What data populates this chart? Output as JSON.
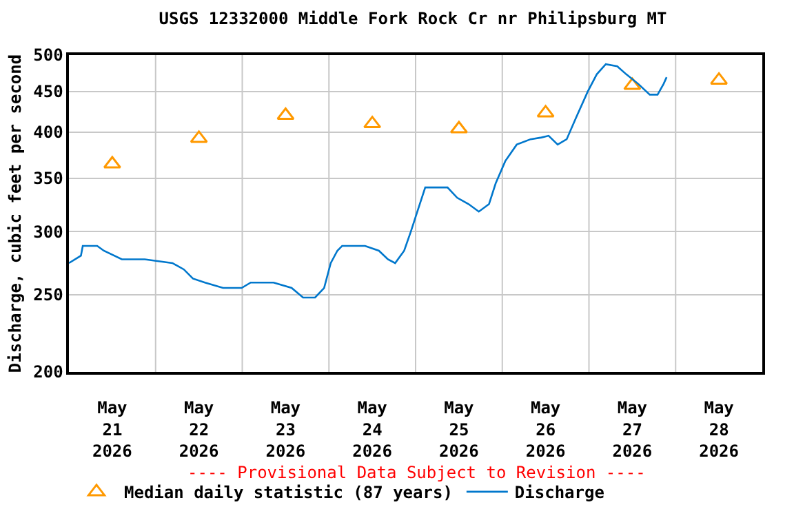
{
  "chart_data": {
    "type": "line",
    "title": "USGS 12332000 Middle Fork Rock Cr nr Philipsburg MT",
    "ylabel": "Discharge, cubic feet per second",
    "annotations": [
      "---- Provisional Data Subject to Revision ----"
    ],
    "log": "y",
    "grid": true,
    "legend": "bottom",
    "xlim": [
      "2026-05-21T00:00",
      "2026-05-29T00:00"
    ],
    "xticks": [
      {
        "value": "2026-05-21T12:00",
        "label": "May\n21\n2026"
      },
      {
        "value": "2026-05-22T00:00",
        "label": null
      },
      {
        "value": "2026-05-22T12:00",
        "label": "May\n22\n2026"
      },
      {
        "value": "2026-05-23T00:00",
        "label": null
      },
      {
        "value": "2026-05-23T12:00",
        "label": "May\n23\n2026"
      },
      {
        "value": "2026-05-24T00:00",
        "label": null
      },
      {
        "value": "2026-05-24T12:00",
        "label": "May\n24\n2026"
      },
      {
        "value": "2026-05-25T00:00",
        "label": null
      },
      {
        "value": "2026-05-25T12:00",
        "label": "May\n25\n2026"
      },
      {
        "value": "2026-05-26T00:00",
        "label": null
      },
      {
        "value": "2026-05-26T12:00",
        "label": "May\n26\n2026"
      },
      {
        "value": "2026-05-27T00:00",
        "label": null
      },
      {
        "value": "2026-05-27T12:00",
        "label": "May\n27\n2026"
      },
      {
        "value": "2026-05-28T00:00",
        "label": null
      },
      {
        "value": "2026-05-28T12:00",
        "label": "May\n28\n2026"
      }
    ],
    "ylim": [
      200,
      500
    ],
    "yticks": [
      200,
      250,
      300,
      350,
      400,
      450,
      500
    ],
    "series": [
      {
        "name": "Median daily statistic (87 years)",
        "type": "scatter",
        "marker": "triangle",
        "color": "#ff9900",
        "x": [
          "2026-05-21T12:00",
          "2026-05-22T12:00",
          "2026-05-23T12:00",
          "2026-05-24T12:00",
          "2026-05-25T12:00",
          "2026-05-26T12:00",
          "2026-05-27T12:00",
          "2026-05-28T12:00"
        ],
        "values": [
          365,
          393,
          420,
          410,
          404,
          423,
          458,
          465
        ]
      },
      {
        "name": "Discharge",
        "marker": "none",
        "line_style": "solid",
        "color": "#0077cc",
        "x": [
          "2026-05-21T00:00",
          "2026-05-21T03:20",
          "2026-05-21T03:50",
          "2026-05-21T07:50",
          "2026-05-21T09:40",
          "2026-05-21T14:40",
          "2026-05-21T21:00",
          "2026-05-22T04:40",
          "2026-05-22T07:50",
          "2026-05-22T10:20",
          "2026-05-22T13:40",
          "2026-05-22T18:40",
          "2026-05-22T23:50",
          "2026-05-23T02:20",
          "2026-05-23T08:40",
          "2026-05-23T13:40",
          "2026-05-23T16:50",
          "2026-05-23T20:10",
          "2026-05-23T22:40",
          "2026-05-24T00:30",
          "2026-05-24T02:20",
          "2026-05-24T03:40",
          "2026-05-24T10:00",
          "2026-05-24T13:50",
          "2026-05-24T16:20",
          "2026-05-24T18:20",
          "2026-05-24T20:50",
          "2026-05-24T22:40",
          "2026-05-25T00:40",
          "2026-05-25T02:40",
          "2026-05-25T05:10",
          "2026-05-25T08:50",
          "2026-05-25T11:30",
          "2026-05-25T14:40",
          "2026-05-25T17:30",
          "2026-05-25T20:20",
          "2026-05-25T22:10",
          "2026-05-26T00:50",
          "2026-05-26T04:00",
          "2026-05-26T07:50",
          "2026-05-26T10:50",
          "2026-05-26T12:50",
          "2026-05-26T15:20",
          "2026-05-26T17:50",
          "2026-05-26T20:30",
          "2026-05-26T23:40",
          "2026-05-27T02:10",
          "2026-05-27T04:40",
          "2026-05-27T07:50",
          "2026-05-27T10:20",
          "2026-05-27T13:40",
          "2026-05-27T16:50",
          "2026-05-27T19:00",
          "2026-05-27T20:40",
          "2026-05-27T21:30"
        ],
        "values": [
          274,
          280,
          288,
          288,
          284,
          277,
          277,
          274,
          269,
          262,
          259,
          255,
          255,
          259,
          259,
          255,
          248,
          248,
          255,
          274,
          284,
          288,
          288,
          284,
          277,
          274,
          284,
          300,
          320,
          341,
          341,
          341,
          331,
          325,
          318,
          325,
          345,
          368,
          386,
          392,
          394,
          396,
          386,
          392,
          418,
          450,
          473,
          487,
          484,
          473,
          460,
          446,
          446,
          460,
          469
        ]
      }
    ]
  }
}
